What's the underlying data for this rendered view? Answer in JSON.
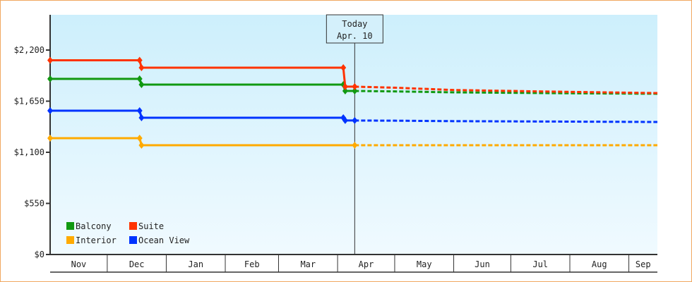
{
  "chart_data": {
    "type": "line",
    "title": "",
    "xlabel": "",
    "ylabel": "",
    "ylim": [
      0,
      2200
    ],
    "yticks": [
      {
        "value": 0,
        "label": "$0"
      },
      {
        "value": 550,
        "label": "$550"
      },
      {
        "value": 1100,
        "label": "$1,100"
      },
      {
        "value": 1650,
        "label": "$1,650"
      },
      {
        "value": 2200,
        "label": "$2,200"
      }
    ],
    "xrange": [
      "Nov 1",
      "Sep 16"
    ],
    "xticks": [
      "Nov",
      "Dec",
      "Jan",
      "Feb",
      "Mar",
      "Apr",
      "May",
      "Jun",
      "Jul",
      "Aug",
      "Sep"
    ],
    "grid": false,
    "legend_placement": "bottom-left",
    "today": {
      "title": "Today",
      "date_label": "Apr. 10",
      "date": "Apr 10"
    },
    "series": [
      {
        "name": "Balcony",
        "color": "#119911",
        "history": [
          [
            "Nov 1",
            1890
          ],
          [
            "Dec 18",
            1890
          ],
          [
            "Dec 19",
            1828
          ],
          [
            "Apr 4",
            1828
          ],
          [
            "Apr 5",
            1760
          ],
          [
            "Apr 10",
            1760
          ]
        ],
        "projection": [
          [
            "Apr 10",
            1760
          ],
          [
            "May 1",
            1755
          ],
          [
            "Jun 1",
            1745
          ],
          [
            "Jul 1",
            1740
          ],
          [
            "Aug 1",
            1735
          ],
          [
            "Sep 16",
            1730
          ]
        ]
      },
      {
        "name": "Suite",
        "color": "#ff3300",
        "history": [
          [
            "Nov 1",
            2090
          ],
          [
            "Dec 18",
            2090
          ],
          [
            "Dec 19",
            2010
          ],
          [
            "Apr 4",
            2010
          ],
          [
            "Apr 5",
            1806
          ],
          [
            "Apr 10",
            1806
          ]
        ],
        "projection": [
          [
            "Apr 10",
            1806
          ],
          [
            "May 1",
            1795
          ],
          [
            "Jun 1",
            1770
          ],
          [
            "Jul 1",
            1760
          ],
          [
            "Aug 1",
            1750
          ],
          [
            "Sep 16",
            1737
          ]
        ]
      },
      {
        "name": "Interior",
        "color": "#ffaa00",
        "history": [
          [
            "Nov 1",
            1252
          ],
          [
            "Dec 18",
            1252
          ],
          [
            "Dec 19",
            1176
          ],
          [
            "Apr 10",
            1176
          ]
        ],
        "projection": [
          [
            "Apr 10",
            1176
          ],
          [
            "Sep 16",
            1176
          ]
        ]
      },
      {
        "name": "Ocean View",
        "color": "#0033ff",
        "history": [
          [
            "Nov 1",
            1548
          ],
          [
            "Dec 18",
            1548
          ],
          [
            "Dec 19",
            1472
          ],
          [
            "Apr 4",
            1472
          ],
          [
            "Apr 5",
            1442
          ],
          [
            "Apr 10",
            1442
          ]
        ],
        "projection": [
          [
            "Apr 10",
            1442
          ],
          [
            "May 1",
            1440
          ],
          [
            "Jun 1",
            1435
          ],
          [
            "Aug 1",
            1430
          ],
          [
            "Sep 16",
            1426
          ]
        ]
      }
    ],
    "background_colors": [
      "#cdeffc",
      "#f0faff"
    ]
  }
}
